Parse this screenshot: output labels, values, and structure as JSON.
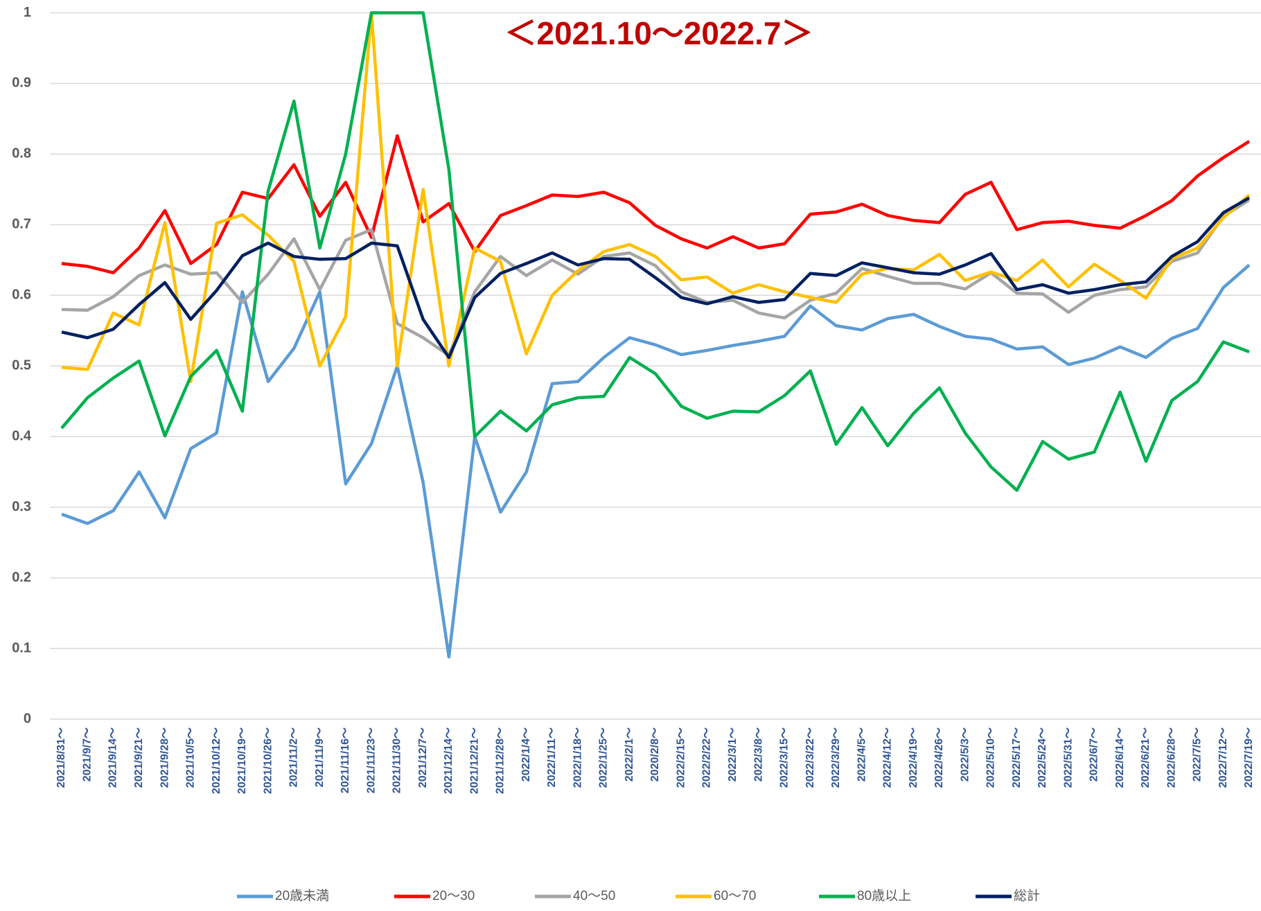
{
  "chart_data": {
    "type": "line",
    "title": "＜2021.10～2022.7＞",
    "categories": [
      "2021/8/31～",
      "2021/9/7～",
      "2021/9/14～",
      "2021/9/21～",
      "2021/9/28～",
      "2021/10/5～",
      "2021/10/12～",
      "2021/10/19～",
      "2021/10/26～",
      "2021/11/2～",
      "2021/11/9～",
      "2021/11/16～",
      "2021/11/23～",
      "2021/11/30～",
      "2021/12/7～",
      "2021/12/14～",
      "2021/12/21～",
      "2021/12/28～",
      "2022/1/4～",
      "2022/1/11～",
      "2022/1/18～",
      "2022/1/25～",
      "2022/2/1～",
      "2020/2/8～",
      "2022/2/15～",
      "2022/2/22～",
      "2022/3/1～",
      "2022/3/8～",
      "2022/3/15～",
      "2022/3/22～",
      "2022/3/29～",
      "2022/4/5～",
      "2022/4/12～",
      "2022/4/19～",
      "2022/4/26～",
      "2022/5/3～",
      "2022/5/10～",
      "2022/5/17～",
      "2022/5/24～",
      "2022/5/31～",
      "2022/6/7～",
      "2022/6/14～",
      "2022/6/21～",
      "2022/6/28～",
      "2022/7/5～",
      "2022/7/12～",
      "2022/7/19～"
    ],
    "series": [
      {
        "name": "20歳未満",
        "color": "#5b9bd5",
        "values": [
          0.29,
          0.277,
          0.295,
          0.35,
          0.285,
          0.383,
          0.405,
          0.605,
          0.478,
          0.525,
          0.605,
          0.333,
          0.39,
          0.5,
          0.335,
          0.088,
          0.4,
          0.293,
          0.35,
          0.475,
          0.478,
          0.512,
          0.54,
          0.53,
          0.516,
          0.522,
          0.529,
          0.535,
          0.542,
          0.585,
          0.557,
          0.551,
          0.567,
          0.573,
          0.556,
          0.542,
          0.538,
          0.524,
          0.527,
          0.502,
          0.511,
          0.527,
          0.512,
          0.539,
          0.553,
          0.611,
          0.643
        ]
      },
      {
        "name": "20～30",
        "color": "#ff0000",
        "values": [
          0.645,
          0.641,
          0.632,
          0.667,
          0.72,
          0.645,
          0.672,
          0.746,
          0.737,
          0.785,
          0.712,
          0.76,
          0.682,
          0.826,
          0.704,
          0.73,
          0.662,
          0.713,
          0.727,
          0.742,
          0.74,
          0.746,
          0.731,
          0.699,
          0.68,
          0.667,
          0.683,
          0.667,
          0.673,
          0.715,
          0.718,
          0.729,
          0.713,
          0.706,
          0.703,
          0.743,
          0.76,
          0.693,
          0.703,
          0.705,
          0.699,
          0.695,
          0.713,
          0.734,
          0.769,
          0.795,
          0.818
        ]
      },
      {
        "name": "40～50",
        "color": "#a5a5a5",
        "values": [
          0.58,
          0.579,
          0.598,
          0.628,
          0.643,
          0.63,
          0.632,
          0.59,
          0.63,
          0.68,
          0.608,
          0.678,
          0.693,
          0.56,
          0.54,
          0.515,
          0.605,
          0.655,
          0.628,
          0.65,
          0.63,
          0.655,
          0.66,
          0.642,
          0.605,
          0.59,
          0.593,
          0.575,
          0.568,
          0.593,
          0.603,
          0.638,
          0.627,
          0.617,
          0.617,
          0.609,
          0.632,
          0.603,
          0.602,
          0.576,
          0.6,
          0.608,
          0.612,
          0.648,
          0.66,
          0.712,
          0.735
        ]
      },
      {
        "name": "60～70",
        "color": "#ffc000",
        "values": [
          0.498,
          0.495,
          0.575,
          0.558,
          0.703,
          0.478,
          0.702,
          0.714,
          0.685,
          0.648,
          0.5,
          0.57,
          1.0,
          0.5,
          0.75,
          0.5,
          0.667,
          0.648,
          0.517,
          0.6,
          0.635,
          0.662,
          0.672,
          0.655,
          0.622,
          0.626,
          0.603,
          0.615,
          0.605,
          0.597,
          0.59,
          0.63,
          0.638,
          0.636,
          0.658,
          0.621,
          0.633,
          0.621,
          0.65,
          0.612,
          0.644,
          0.621,
          0.596,
          0.652,
          0.667,
          0.71,
          0.742
        ]
      },
      {
        "name": "80歳以上",
        "color": "#00b050",
        "values": [
          0.412,
          0.455,
          0.483,
          0.507,
          0.401,
          0.485,
          0.522,
          0.436,
          0.748,
          0.875,
          0.667,
          0.8,
          1.0,
          1.0,
          1.0,
          0.778,
          0.4,
          0.436,
          0.408,
          0.445,
          0.455,
          0.457,
          0.512,
          0.489,
          0.443,
          0.426,
          0.436,
          0.435,
          0.458,
          0.493,
          0.389,
          0.441,
          0.387,
          0.433,
          0.469,
          0.405,
          0.357,
          0.324,
          0.393,
          0.368,
          0.378,
          0.463,
          0.365,
          0.451,
          0.478,
          0.534,
          0.52
        ]
      },
      {
        "name": "総計",
        "color": "#002060",
        "values": [
          0.548,
          0.54,
          0.552,
          0.587,
          0.618,
          0.566,
          0.607,
          0.656,
          0.674,
          0.655,
          0.651,
          0.652,
          0.674,
          0.67,
          0.566,
          0.512,
          0.597,
          0.631,
          0.645,
          0.66,
          0.643,
          0.652,
          0.651,
          0.625,
          0.597,
          0.588,
          0.598,
          0.59,
          0.594,
          0.631,
          0.628,
          0.646,
          0.639,
          0.632,
          0.63,
          0.643,
          0.659,
          0.608,
          0.615,
          0.603,
          0.608,
          0.615,
          0.619,
          0.655,
          0.676,
          0.717,
          0.738
        ]
      }
    ],
    "ylim": [
      0,
      1
    ],
    "yticks": [
      0,
      0.1,
      0.2,
      0.3,
      0.4,
      0.5,
      0.6,
      0.7,
      0.8,
      0.9,
      1
    ],
    "grid": true,
    "legend": "bottom"
  }
}
